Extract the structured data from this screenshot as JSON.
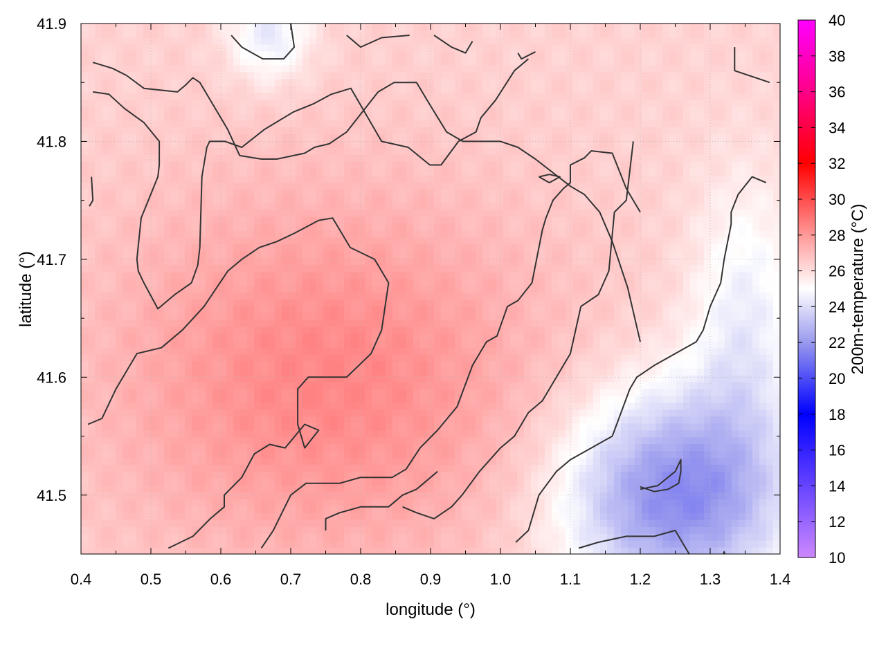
{
  "chart_data": {
    "type": "heatmap",
    "title": "",
    "xlabel": "longitude (°)",
    "ylabel": "latitude (°)",
    "colorbar_label": "200m-temperature (°C)",
    "xlim": [
      0.4,
      1.4
    ],
    "ylim": [
      41.45,
      41.9
    ],
    "x_ticks": [
      "0.4",
      "0.5",
      "0.6",
      "0.7",
      "0.8",
      "0.9",
      "1.0",
      "1.1",
      "1.2",
      "1.3",
      "1.4"
    ],
    "y_ticks": [
      "41.5",
      "41.6",
      "41.7",
      "41.8",
      "41.9"
    ],
    "colorbar_range": [
      10,
      40
    ],
    "colorbar_ticks": [
      "10",
      "12",
      "14",
      "16",
      "18",
      "20",
      "22",
      "24",
      "26",
      "28",
      "30",
      "32",
      "34",
      "36",
      "38",
      "40"
    ],
    "colorbar_stops": [
      {
        "value": 10,
        "color": "#cc88ff"
      },
      {
        "value": 14,
        "color": "#6644ff"
      },
      {
        "value": 18,
        "color": "#0000ff"
      },
      {
        "value": 22,
        "color": "#9999ee"
      },
      {
        "value": 25,
        "color": "#ffffff"
      },
      {
        "value": 28,
        "color": "#ff9999"
      },
      {
        "value": 32,
        "color": "#ff0000"
      },
      {
        "value": 36,
        "color": "#ff0088"
      },
      {
        "value": 40,
        "color": "#ff00ff"
      }
    ],
    "grid": true,
    "field_summary": {
      "min": 21.5,
      "max": 28.6,
      "warm_core": {
        "lon": 0.75,
        "lat": 41.6,
        "temp": 28.5
      },
      "cool_region": {
        "lon": 1.25,
        "lat": 41.5,
        "temp": 21.5
      }
    },
    "contour_color": "#333333",
    "contours": [
      {
        "points": [
          [
            0.417,
            41.867
          ],
          [
            0.445,
            41.862
          ],
          [
            0.465,
            41.856
          ],
          [
            0.49,
            41.845
          ],
          [
            0.538,
            41.842
          ],
          [
            0.55,
            41.848
          ],
          [
            0.56,
            41.854
          ],
          [
            0.57,
            41.85
          ],
          [
            0.595,
            41.825
          ],
          [
            0.61,
            41.81
          ],
          [
            0.627,
            41.788
          ],
          [
            0.658,
            41.785
          ],
          [
            0.68,
            41.785
          ],
          [
            0.72,
            41.79
          ],
          [
            0.734,
            41.795
          ],
          [
            0.755,
            41.798
          ],
          [
            0.78,
            41.808
          ],
          [
            0.825,
            41.842
          ],
          [
            0.848,
            41.85
          ],
          [
            0.88,
            41.85
          ],
          [
            0.895,
            41.835
          ],
          [
            0.923,
            41.808
          ],
          [
            0.946,
            41.8
          ],
          [
            1.0,
            41.8
          ],
          [
            1.025,
            41.795
          ],
          [
            1.05,
            41.785
          ],
          [
            1.1,
            41.762
          ],
          [
            1.12,
            41.755
          ],
          [
            1.142,
            41.74
          ],
          [
            1.16,
            41.715
          ],
          [
            1.182,
            41.676
          ],
          [
            1.2,
            41.63
          ]
        ]
      },
      {
        "points": [
          [
            0.417,
            41.842
          ],
          [
            0.44,
            41.84
          ],
          [
            0.462,
            41.828
          ],
          [
            0.49,
            41.816
          ],
          [
            0.512,
            41.8
          ],
          [
            0.512,
            41.78
          ],
          [
            0.51,
            41.77
          ],
          [
            0.486,
            41.735
          ],
          [
            0.48,
            41.7
          ],
          [
            0.482,
            41.69
          ],
          [
            0.49,
            41.68
          ],
          [
            0.51,
            41.658
          ],
          [
            0.534,
            41.67
          ],
          [
            0.558,
            41.68
          ],
          [
            0.567,
            41.695
          ],
          [
            0.57,
            41.71
          ],
          [
            0.571,
            41.73
          ],
          [
            0.573,
            41.77
          ],
          [
            0.58,
            41.795
          ],
          [
            0.584,
            41.8
          ],
          [
            0.606,
            41.8
          ],
          [
            0.63,
            41.795
          ],
          [
            0.662,
            41.81
          ],
          [
            0.704,
            41.825
          ],
          [
            0.733,
            41.832
          ],
          [
            0.758,
            41.84
          ],
          [
            0.786,
            41.845
          ],
          [
            0.83,
            41.8
          ],
          [
            0.868,
            41.795
          ],
          [
            0.899,
            41.78
          ],
          [
            0.915,
            41.78
          ],
          [
            0.94,
            41.8
          ],
          [
            0.965,
            41.808
          ],
          [
            0.972,
            41.82
          ],
          [
            0.993,
            41.835
          ],
          [
            1.02,
            41.86
          ],
          [
            1.04,
            41.87
          ]
        ]
      },
      {
        "points": [
          [
            0.41,
            41.56
          ],
          [
            0.43,
            41.565
          ],
          [
            0.45,
            41.59
          ],
          [
            0.48,
            41.62
          ],
          [
            0.515,
            41.625
          ],
          [
            0.545,
            41.64
          ],
          [
            0.576,
            41.66
          ],
          [
            0.61,
            41.69
          ],
          [
            0.63,
            41.7
          ],
          [
            0.655,
            41.71
          ],
          [
            0.68,
            41.715
          ],
          [
            0.705,
            41.722
          ],
          [
            0.74,
            41.733
          ],
          [
            0.76,
            41.735
          ],
          [
            0.785,
            41.71
          ],
          [
            0.82,
            41.7
          ],
          [
            0.84,
            41.68
          ],
          [
            0.83,
            41.64
          ],
          [
            0.815,
            41.62
          ],
          [
            0.78,
            41.6
          ],
          [
            0.745,
            41.6
          ],
          [
            0.725,
            41.6
          ],
          [
            0.71,
            41.59
          ],
          [
            0.71,
            41.56
          ],
          [
            0.72,
            41.54
          ],
          [
            0.74,
            41.555
          ],
          [
            0.72,
            41.56
          ],
          [
            0.692,
            41.54
          ],
          [
            0.67,
            41.543
          ],
          [
            0.648,
            41.535
          ],
          [
            0.63,
            41.515
          ],
          [
            0.605,
            41.5
          ],
          [
            0.605,
            41.49
          ],
          [
            0.585,
            41.48
          ],
          [
            0.56,
            41.465
          ],
          [
            0.525,
            41.455
          ]
        ]
      },
      {
        "points": [
          [
            0.658,
            41.455
          ],
          [
            0.675,
            41.47
          ],
          [
            0.7,
            41.5
          ],
          [
            0.722,
            41.51
          ],
          [
            0.77,
            41.51
          ],
          [
            0.8,
            41.515
          ],
          [
            0.845,
            41.515
          ],
          [
            0.865,
            41.522
          ],
          [
            0.885,
            41.54
          ],
          [
            0.91,
            41.555
          ],
          [
            0.938,
            41.575
          ],
          [
            0.96,
            41.61
          ],
          [
            0.98,
            41.63
          ],
          [
            0.995,
            41.635
          ],
          [
            1.01,
            41.66
          ],
          [
            1.025,
            41.665
          ],
          [
            1.045,
            41.68
          ],
          [
            1.06,
            41.725
          ],
          [
            1.065,
            41.735
          ],
          [
            1.075,
            41.75
          ],
          [
            1.09,
            41.76
          ],
          [
            1.1,
            41.765
          ],
          [
            1.1,
            41.78
          ],
          [
            1.12,
            41.786
          ],
          [
            1.13,
            41.792
          ],
          [
            1.16,
            41.79
          ],
          [
            1.18,
            41.76
          ],
          [
            1.195,
            41.745
          ],
          [
            1.2,
            41.74
          ]
        ]
      },
      {
        "points": [
          [
            0.86,
            41.49
          ],
          [
            0.88,
            41.485
          ],
          [
            0.905,
            41.48
          ],
          [
            0.93,
            41.49
          ],
          [
            0.945,
            41.5
          ],
          [
            0.97,
            41.52
          ],
          [
            1.0,
            41.54
          ],
          [
            1.02,
            41.55
          ],
          [
            1.04,
            41.57
          ],
          [
            1.06,
            41.58
          ],
          [
            1.1,
            41.62
          ],
          [
            1.115,
            41.66
          ],
          [
            1.14,
            41.67
          ],
          [
            1.155,
            41.69
          ],
          [
            1.163,
            41.74
          ],
          [
            1.18,
            41.75
          ],
          [
            1.19,
            41.8
          ]
        ]
      },
      {
        "points": [
          [
            0.75,
            41.47
          ],
          [
            0.75,
            41.48
          ],
          [
            0.77,
            41.485
          ],
          [
            0.8,
            41.49
          ],
          [
            0.84,
            41.49
          ],
          [
            0.86,
            41.5
          ],
          [
            0.88,
            41.505
          ],
          [
            0.91,
            41.52
          ]
        ]
      },
      {
        "points": [
          [
            1.022,
            41.46
          ],
          [
            1.04,
            41.47
          ],
          [
            1.055,
            41.5
          ],
          [
            1.08,
            41.52
          ],
          [
            1.1,
            41.53
          ],
          [
            1.13,
            41.54
          ],
          [
            1.16,
            41.55
          ],
          [
            1.185,
            41.59
          ],
          [
            1.195,
            41.6
          ],
          [
            1.22,
            41.61
          ],
          [
            1.25,
            41.62
          ],
          [
            1.28,
            41.63
          ],
          [
            1.29,
            41.64
          ],
          [
            1.3,
            41.66
          ],
          [
            1.315,
            41.68
          ],
          [
            1.32,
            41.7
          ],
          [
            1.33,
            41.73
          ],
          [
            1.33,
            41.74
          ],
          [
            1.34,
            41.755
          ],
          [
            1.36,
            41.77
          ],
          [
            1.38,
            41.765
          ]
        ]
      },
      {
        "points": [
          [
            1.112,
            41.455
          ],
          [
            1.14,
            41.46
          ],
          [
            1.18,
            41.465
          ],
          [
            1.22,
            41.465
          ],
          [
            1.25,
            41.47
          ],
          [
            1.27,
            41.45
          ]
        ]
      },
      {
        "points": [
          [
            1.2,
            41.505
          ],
          [
            1.225,
            41.508
          ],
          [
            1.25,
            41.52
          ],
          [
            1.258,
            41.53
          ],
          [
            1.258,
            41.52
          ],
          [
            1.255,
            41.51
          ],
          [
            1.24,
            41.505
          ],
          [
            1.22,
            41.503
          ],
          [
            1.2,
            41.507
          ]
        ]
      },
      {
        "points": [
          [
            0.615,
            41.89
          ],
          [
            0.63,
            41.88
          ],
          [
            0.66,
            41.87
          ],
          [
            0.69,
            41.87
          ],
          [
            0.705,
            41.88
          ],
          [
            0.7,
            41.9
          ]
        ]
      },
      {
        "points": [
          [
            0.78,
            41.89
          ],
          [
            0.8,
            41.88
          ],
          [
            0.83,
            41.888
          ],
          [
            0.87,
            41.89
          ]
        ]
      },
      {
        "points": [
          [
            0.905,
            41.89
          ],
          [
            0.93,
            41.88
          ],
          [
            0.95,
            41.875
          ],
          [
            0.96,
            41.885
          ]
        ]
      },
      {
        "points": [
          [
            1.025,
            41.875
          ],
          [
            1.03,
            41.87
          ],
          [
            1.05,
            41.876
          ]
        ]
      },
      {
        "points": [
          [
            1.335,
            41.88
          ],
          [
            1.335,
            41.86
          ],
          [
            1.36,
            41.855
          ],
          [
            1.385,
            41.85
          ]
        ]
      },
      {
        "points": [
          [
            0.415,
            41.77
          ],
          [
            0.417,
            41.75
          ],
          [
            0.412,
            41.745
          ]
        ]
      },
      {
        "points": [
          [
            1.055,
            41.77
          ],
          [
            1.07,
            41.772
          ],
          [
            1.085,
            41.77
          ],
          [
            1.07,
            41.765
          ],
          [
            1.055,
            41.77
          ]
        ]
      },
      {
        "points": [
          [
            1.318,
            41.448
          ],
          [
            1.32,
            41.452
          ],
          [
            1.322,
            41.448
          ]
        ]
      }
    ]
  }
}
